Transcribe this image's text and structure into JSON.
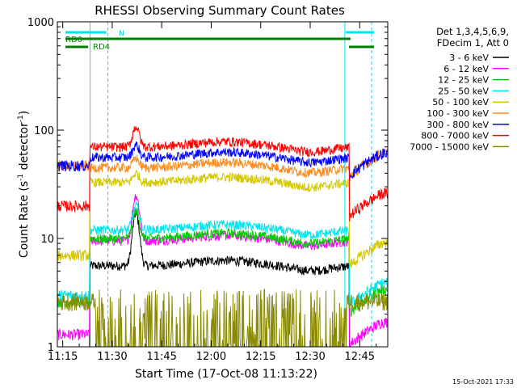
{
  "chart_data": {
    "type": "line",
    "title": "RHESSI Observing Summary Count Rates",
    "xlabel": "Start Time (17-Oct-08 11:13:22)",
    "ylabel_main": "Count Rate (s",
    "ylabel_sup1": "-1",
    "ylabel_mid": " detector",
    "ylabel_sup2": "-1",
    "ylabel_end": ")",
    "x_ticks": [
      "11:15",
      "11:30",
      "11:45",
      "12:00",
      "12:15",
      "12:30",
      "12:45"
    ],
    "x_tick_minutes": [
      15,
      30,
      45,
      60,
      75,
      90,
      105
    ],
    "x_range_minutes": [
      13.37,
      113.5
    ],
    "y_scale": "log",
    "y_range": [
      1,
      1000
    ],
    "y_ticks": [
      "1",
      "10",
      "100",
      "1000"
    ],
    "y_tick_values": [
      1,
      10,
      100,
      1000
    ],
    "grid": false,
    "legend_header": [
      "Det 1,3,4,5,6,9,",
      "FDecim 1, Att 0"
    ],
    "legend_placement": "right",
    "series": [
      {
        "name": "3 - 6 keV",
        "color": "#000000",
        "level": 5.6,
        "peak": 17,
        "night": 0
      },
      {
        "name": "6 - 12 keV",
        "color": "#ff00ff",
        "level": 9.5,
        "peak": 25,
        "night": 1.3
      },
      {
        "name": "12 - 25 keV",
        "color": "#00cc00",
        "level": 10,
        "peak": 18,
        "night": 2.6
      },
      {
        "name": "25 - 50 keV",
        "color": "#00e5ee",
        "level": 12,
        "peak": 20,
        "night": 3.0
      },
      {
        "name": "50 - 100 keV",
        "color": "#d4c800",
        "level": 33,
        "peak": 40,
        "night": 7.0
      },
      {
        "name": "100 - 300 keV",
        "color": "#ff8c1a",
        "level": 45,
        "peak": 55,
        "night": 47
      },
      {
        "name": "300 - 800 keV",
        "color": "#0000ff",
        "level": 56,
        "peak": 73,
        "night": 47
      },
      {
        "name": "800 - 7000 keV",
        "color": "#ff0000",
        "level": 70,
        "peak": 108,
        "night": 20
      },
      {
        "name": "7000 - 15000 keV",
        "color": "#8b8b00",
        "level": 1,
        "peak": 1,
        "night": 2.5
      }
    ],
    "annotations": {
      "rd0_label": "RD0",
      "rd4_label": "RD4",
      "n_label": "N",
      "footer_date": "15-Oct-2021 17:33"
    },
    "colors": {
      "night_bar": "#00e5ee",
      "decimation_bar": "#008000"
    }
  }
}
